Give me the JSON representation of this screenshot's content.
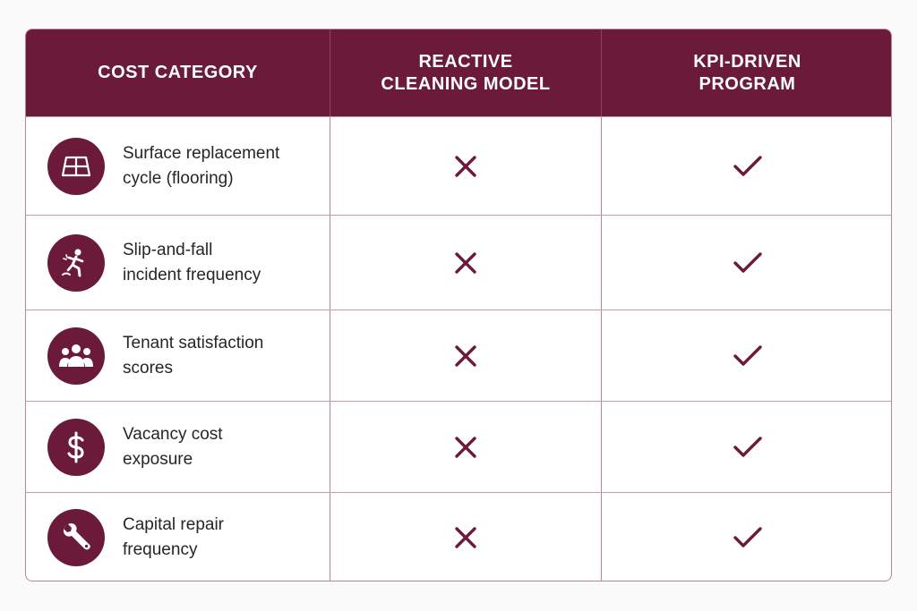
{
  "header": {
    "col1": "COST CATEGORY",
    "col2": "REACTIVE\nCLEANING MODEL",
    "col3": "KPI-DRIVEN\nPROGRAM"
  },
  "rows": [
    {
      "label": "Surface replacement\ncycle (flooring)",
      "icon": "flooring-tiles-icon",
      "reactive": "x-mark",
      "kpi": "check-mark"
    },
    {
      "label": "Slip-and-fall\nincident frequency",
      "icon": "slip-fall-icon",
      "reactive": "x-mark",
      "kpi": "check-mark"
    },
    {
      "label": "Tenant satisfaction\nscores",
      "icon": "people-group-icon",
      "reactive": "x-mark",
      "kpi": "check-mark"
    },
    {
      "label": "Vacancy cost\nexposure",
      "icon": "dollar-sign-icon",
      "reactive": "x-mark",
      "kpi": "check-mark"
    },
    {
      "label": "Capital repair\nfrequency",
      "icon": "wrench-icon",
      "reactive": "x-mark",
      "kpi": "check-mark"
    }
  ],
  "colors": {
    "accent": "#6b1a3a",
    "border": "#b98595"
  }
}
